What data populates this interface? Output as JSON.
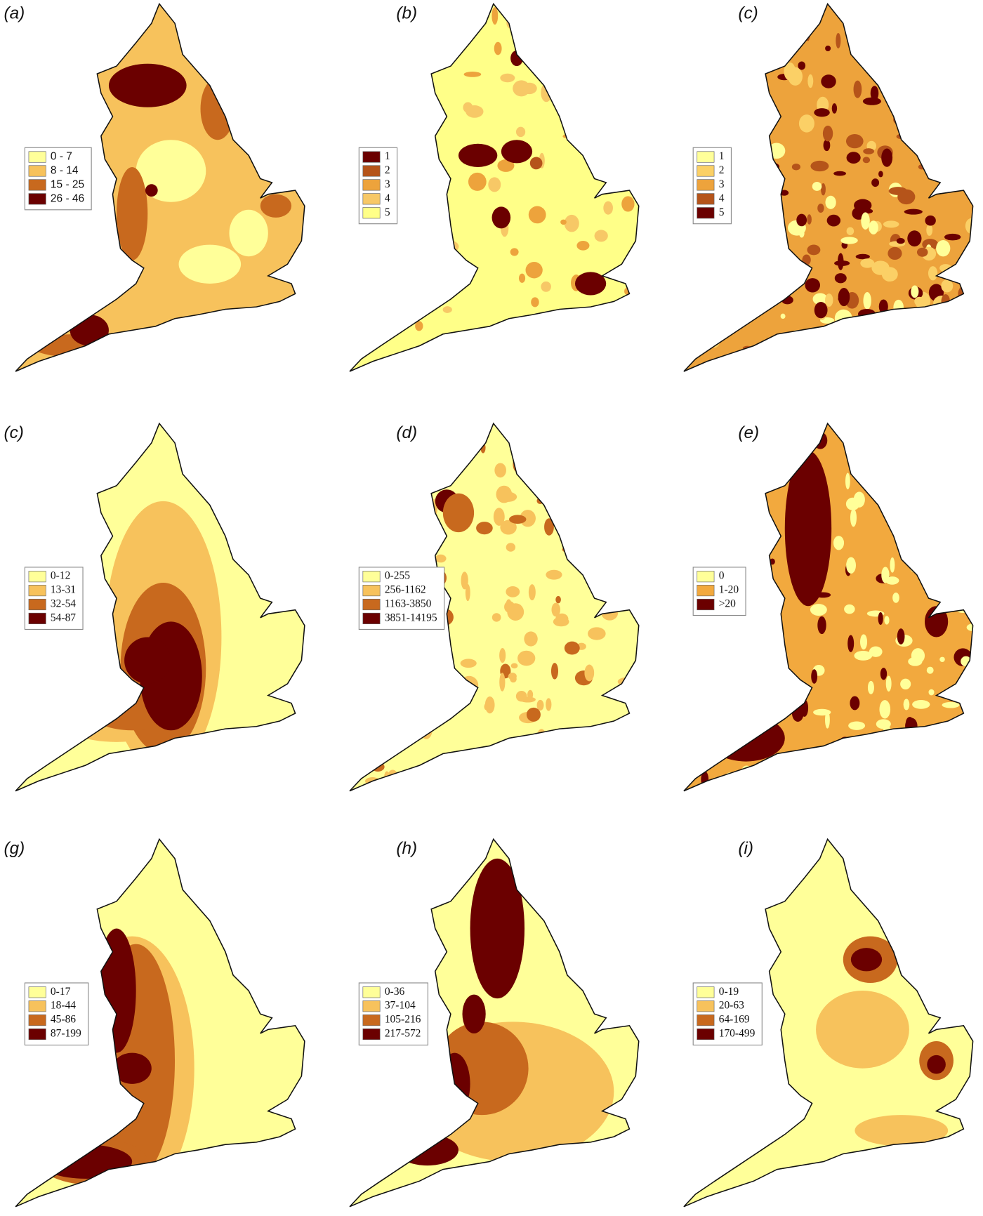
{
  "panels": [
    {
      "label": "(a)",
      "legend": [
        {
          "label": "0 - 7",
          "color": "#ffff99"
        },
        {
          "label": "8 - 14",
          "color": "#f7c25c"
        },
        {
          "label": "15 - 25",
          "color": "#c8691e"
        },
        {
          "label": "26 - 46",
          "color": "#6b0000"
        }
      ]
    },
    {
      "label": "(b)",
      "legend": [
        {
          "label": "1",
          "color": "#6b0000"
        },
        {
          "label": "2",
          "color": "#b5541a"
        },
        {
          "label": "3",
          "color": "#eda33c"
        },
        {
          "label": "4",
          "color": "#f7c866"
        },
        {
          "label": "5",
          "color": "#ffff88"
        }
      ]
    },
    {
      "label": "(c)",
      "legend": [
        {
          "label": "1",
          "color": "#ffff99"
        },
        {
          "label": "2",
          "color": "#fbd066"
        },
        {
          "label": "3",
          "color": "#eda33c"
        },
        {
          "label": "4",
          "color": "#b5541a"
        },
        {
          "label": "5",
          "color": "#6b0000"
        }
      ]
    },
    {
      "label": "(c)",
      "legend": [
        {
          "label": "0-12",
          "color": "#ffff99"
        },
        {
          "label": "13-31",
          "color": "#f7c25c"
        },
        {
          "label": "32-54",
          "color": "#c8691e"
        },
        {
          "label": "54-87",
          "color": "#6b0000"
        }
      ]
    },
    {
      "label": "(d)",
      "legend": [
        {
          "label": "0-255",
          "color": "#ffff99"
        },
        {
          "label": "256-1162",
          "color": "#f7c25c"
        },
        {
          "label": "1163-3850",
          "color": "#c8691e"
        },
        {
          "label": "3851-14195",
          "color": "#6b0000"
        }
      ]
    },
    {
      "label": "(e)",
      "legend": [
        {
          "label": "0",
          "color": "#ffff99"
        },
        {
          "label": "1-20",
          "color": "#f2a93e"
        },
        {
          "label": ">20",
          "color": "#6b0000"
        }
      ]
    },
    {
      "label": "(g)",
      "legend": [
        {
          "label": "0-17",
          "color": "#ffff99"
        },
        {
          "label": "18-44",
          "color": "#f7c25c"
        },
        {
          "label": "45-86",
          "color": "#c8691e"
        },
        {
          "label": "87-199",
          "color": "#6b0000"
        }
      ]
    },
    {
      "label": "(h)",
      "legend": [
        {
          "label": "0-36",
          "color": "#ffff99"
        },
        {
          "label": "37-104",
          "color": "#f7c25c"
        },
        {
          "label": "105-216",
          "color": "#c8691e"
        },
        {
          "label": "217-572",
          "color": "#6b0000"
        }
      ]
    },
    {
      "label": "(i)",
      "legend": [
        {
          "label": "0-19",
          "color": "#ffff99"
        },
        {
          "label": "20-63",
          "color": "#f7c25c"
        },
        {
          "label": "64-169",
          "color": "#c8691e"
        },
        {
          "label": "170-499",
          "color": "#6b0000"
        }
      ]
    }
  ]
}
